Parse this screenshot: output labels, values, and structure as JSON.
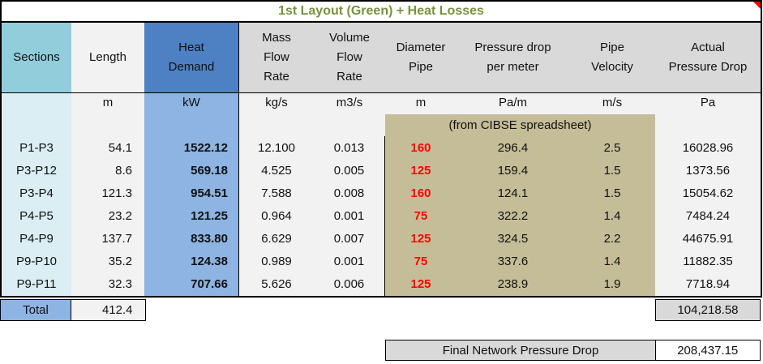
{
  "title": "1st Layout (Green) + Heat Losses",
  "columns": [
    {
      "header": "Sections",
      "unit": ""
    },
    {
      "header": "Length",
      "unit": "m"
    },
    {
      "header": "Heat\nDemand",
      "unit": "kW"
    },
    {
      "header": "Mass\nFlow\nRate",
      "unit": "kg/s"
    },
    {
      "header": "Volume\nFlow\nRate",
      "unit": "m3/s"
    },
    {
      "header": "Diameter\nPipe",
      "unit": "m"
    },
    {
      "header": "Pressure drop\nper meter",
      "unit": "Pa/m"
    },
    {
      "header": "Pipe\nVelocity",
      "unit": "m/s"
    },
    {
      "header": "Actual\nPressure Drop",
      "unit": "Pa"
    }
  ],
  "cibse_note": "(from CIBSE spreadsheet)",
  "rows": [
    {
      "section": "P1-P3",
      "length": "54.1",
      "heat_demand": "1522.12",
      "mass_flow": "12.100",
      "volume_flow": "0.013",
      "diameter": "160",
      "pressure_drop_per_m": "296.4",
      "velocity": "2.5",
      "actual_pressure_drop": "16028.96"
    },
    {
      "section": "P3-P12",
      "length": "8.6",
      "heat_demand": "569.18",
      "mass_flow": "4.525",
      "volume_flow": "0.005",
      "diameter": "125",
      "pressure_drop_per_m": "159.4",
      "velocity": "1.5",
      "actual_pressure_drop": "1373.56"
    },
    {
      "section": "P3-P4",
      "length": "121.3",
      "heat_demand": "954.51",
      "mass_flow": "7.588",
      "volume_flow": "0.008",
      "diameter": "160",
      "pressure_drop_per_m": "124.1",
      "velocity": "1.5",
      "actual_pressure_drop": "15054.62"
    },
    {
      "section": "P4-P5",
      "length": "23.2",
      "heat_demand": "121.25",
      "mass_flow": "0.964",
      "volume_flow": "0.001",
      "diameter": "75",
      "pressure_drop_per_m": "322.2",
      "velocity": "1.4",
      "actual_pressure_drop": "7484.24"
    },
    {
      "section": "P4-P9",
      "length": "137.7",
      "heat_demand": "833.80",
      "mass_flow": "6.629",
      "volume_flow": "0.007",
      "diameter": "125",
      "pressure_drop_per_m": "324.5",
      "velocity": "2.2",
      "actual_pressure_drop": "44675.91"
    },
    {
      "section": "P9-P10",
      "length": "35.2",
      "heat_demand": "124.38",
      "mass_flow": "0.989",
      "volume_flow": "0.001",
      "diameter": "75",
      "pressure_drop_per_m": "337.6",
      "velocity": "1.4",
      "actual_pressure_drop": "11882.35"
    },
    {
      "section": "P9-P11",
      "length": "32.3",
      "heat_demand": "707.66",
      "mass_flow": "5.626",
      "volume_flow": "0.006",
      "diameter": "125",
      "pressure_drop_per_m": "238.9",
      "velocity": "1.9",
      "actual_pressure_drop": "7718.94"
    }
  ],
  "total": {
    "label": "Total",
    "length": "412.4",
    "actual_pressure_drop": "104,218.58"
  },
  "final": {
    "label": "Final Network Pressure Drop",
    "value": "208,437.15"
  },
  "colors": {
    "teal": "#92CDDC",
    "cyan": "#DAEEF3",
    "hblue": "#4E81C4",
    "dblue": "#8DB4E2",
    "hgray": "#D9D9D9",
    "lgray": "#F2F2F2",
    "tan": "#C4BD97",
    "red": "#FF0000",
    "green": "#76933C",
    "line": "#000000"
  }
}
